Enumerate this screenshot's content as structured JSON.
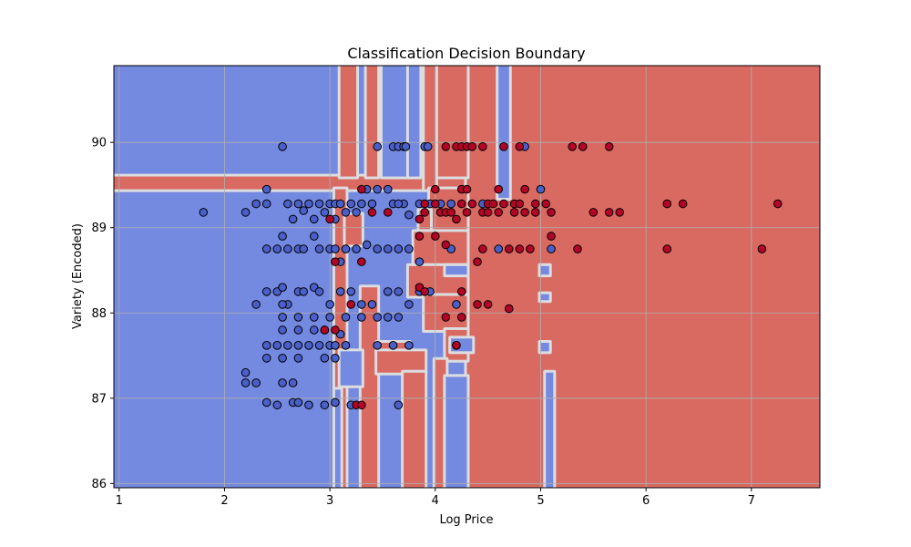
{
  "chart_data": {
    "type": "scatter",
    "title": "Classification Decision Boundary",
    "xlabel": "Log Price",
    "ylabel": "Variety (Encoded)",
    "xlim": [
      0.95,
      7.65
    ],
    "ylim": [
      85.95,
      90.9
    ],
    "xticks": [
      1,
      2,
      3,
      4,
      5,
      6,
      7
    ],
    "yticks": [
      86,
      87,
      88,
      89,
      90
    ],
    "grid": true,
    "colors": {
      "class_0_region": "#7489e0",
      "class_1_region": "#d86a62",
      "boundary_light": "#dcdde0",
      "class_0_point": "#4a5fc8",
      "class_1_point": "#b40426",
      "point_edge": "#000000",
      "grid": "#b0b0b0"
    },
    "regions_class_1": [
      [
        0.95,
        89.45,
        7.65,
        89.6
      ],
      [
        3.1,
        89.6,
        3.25,
        90.9
      ],
      [
        3.35,
        89.6,
        3.45,
        90.9
      ],
      [
        4.3,
        85.95,
        7.65,
        90.9
      ],
      [
        4.0,
        89.6,
        4.3,
        90.9
      ],
      [
        3.9,
        89.45,
        4.0,
        90.9
      ],
      [
        3.95,
        88.95,
        4.3,
        89.45
      ],
      [
        3.85,
        88.95,
        3.95,
        89.2
      ],
      [
        3.8,
        88.55,
        4.3,
        88.95
      ],
      [
        3.75,
        88.2,
        4.3,
        88.55
      ],
      [
        3.05,
        85.95,
        3.15,
        89.45
      ],
      [
        3.15,
        88.8,
        3.3,
        89.15
      ],
      [
        3.3,
        85.95,
        3.45,
        88.3
      ],
      [
        3.45,
        87.55,
        3.75,
        87.65
      ],
      [
        3.45,
        87.3,
        3.9,
        87.55
      ],
      [
        3.7,
        85.95,
        3.9,
        87.3
      ],
      [
        3.9,
        87.8,
        4.3,
        88.2
      ],
      [
        4.1,
        87.45,
        4.3,
        87.8
      ],
      [
        4.0,
        85.95,
        4.1,
        87.45
      ]
    ],
    "regions_class_0": [
      [
        4.1,
        85.95,
        4.3,
        87.25
      ],
      [
        5.05,
        85.95,
        5.12,
        87.3
      ],
      [
        4.1,
        88.45,
        4.3,
        88.55
      ],
      [
        4.15,
        87.55,
        4.35,
        87.7
      ],
      [
        5.0,
        88.45,
        5.08,
        88.55
      ],
      [
        5.0,
        88.15,
        5.08,
        88.22
      ],
      [
        5.0,
        87.55,
        5.08,
        87.65
      ],
      [
        4.6,
        89.35,
        4.7,
        90.9
      ],
      [
        3.5,
        89.6,
        3.75,
        90.9
      ],
      [
        3.75,
        89.6,
        3.85,
        90.9
      ],
      [
        3.1,
        87.15,
        3.3,
        87.55
      ],
      [
        3.05,
        85.95,
        3.1,
        87.1
      ]
    ],
    "series": [
      {
        "class": 0,
        "points": [
          [
            2.55,
            89.95
          ],
          [
            3.45,
            89.95
          ],
          [
            3.6,
            89.95
          ],
          [
            3.65,
            89.95
          ],
          [
            3.7,
            89.95
          ],
          [
            3.72,
            89.95
          ],
          [
            3.9,
            89.95
          ],
          [
            3.93,
            89.95
          ],
          [
            4.85,
            89.95
          ],
          [
            1.8,
            89.18
          ],
          [
            2.2,
            89.18
          ],
          [
            2.3,
            89.28
          ],
          [
            2.4,
            89.28
          ],
          [
            2.4,
            89.45
          ],
          [
            2.6,
            89.28
          ],
          [
            2.7,
            89.28
          ],
          [
            2.8,
            89.28
          ],
          [
            2.9,
            89.28
          ],
          [
            3.0,
            89.28
          ],
          [
            3.05,
            89.28
          ],
          [
            3.1,
            89.28
          ],
          [
            3.2,
            89.28
          ],
          [
            3.3,
            89.28
          ],
          [
            3.4,
            89.28
          ],
          [
            3.6,
            89.28
          ],
          [
            3.7,
            89.28
          ],
          [
            3.85,
            89.28
          ],
          [
            3.95,
            89.28
          ],
          [
            4.05,
            89.28
          ],
          [
            4.15,
            89.28
          ],
          [
            4.45,
            89.28
          ],
          [
            5.0,
            89.45
          ],
          [
            2.65,
            89.1
          ],
          [
            2.75,
            89.2
          ],
          [
            2.85,
            89.1
          ],
          [
            2.95,
            89.18
          ],
          [
            3.05,
            89.1
          ],
          [
            3.15,
            89.18
          ],
          [
            3.35,
            89.45
          ],
          [
            3.45,
            89.45
          ],
          [
            3.55,
            89.45
          ],
          [
            3.65,
            89.28
          ],
          [
            3.75,
            89.15
          ],
          [
            3.25,
            89.18
          ],
          [
            2.4,
            88.75
          ],
          [
            2.5,
            88.75
          ],
          [
            2.55,
            88.9
          ],
          [
            2.6,
            88.75
          ],
          [
            2.7,
            88.75
          ],
          [
            2.75,
            88.75
          ],
          [
            2.85,
            88.9
          ],
          [
            2.9,
            88.75
          ],
          [
            3.0,
            88.75
          ],
          [
            3.05,
            88.75
          ],
          [
            3.1,
            88.6
          ],
          [
            3.15,
            88.75
          ],
          [
            3.25,
            88.75
          ],
          [
            3.35,
            88.8
          ],
          [
            3.45,
            88.75
          ],
          [
            3.55,
            88.75
          ],
          [
            3.65,
            88.75
          ],
          [
            3.75,
            88.75
          ],
          [
            3.85,
            88.6
          ],
          [
            4.15,
            88.75
          ],
          [
            4.6,
            88.75
          ],
          [
            5.1,
            88.75
          ],
          [
            2.4,
            88.25
          ],
          [
            2.5,
            88.25
          ],
          [
            2.55,
            88.3
          ],
          [
            2.6,
            88.1
          ],
          [
            2.7,
            88.25
          ],
          [
            2.75,
            88.25
          ],
          [
            2.85,
            88.3
          ],
          [
            2.9,
            88.25
          ],
          [
            3.0,
            88.1
          ],
          [
            3.1,
            88.25
          ],
          [
            3.2,
            88.25
          ],
          [
            3.3,
            88.1
          ],
          [
            3.4,
            88.1
          ],
          [
            3.55,
            88.25
          ],
          [
            3.65,
            88.25
          ],
          [
            3.75,
            88.1
          ],
          [
            3.85,
            88.25
          ],
          [
            3.95,
            88.25
          ],
          [
            4.2,
            88.1
          ],
          [
            2.3,
            88.1
          ],
          [
            2.55,
            88.1
          ],
          [
            2.55,
            87.95
          ],
          [
            2.7,
            87.95
          ],
          [
            2.85,
            87.95
          ],
          [
            3.0,
            87.95
          ],
          [
            3.15,
            87.95
          ],
          [
            3.3,
            87.95
          ],
          [
            3.45,
            87.95
          ],
          [
            3.55,
            87.95
          ],
          [
            3.65,
            87.95
          ],
          [
            2.55,
            87.8
          ],
          [
            2.7,
            87.8
          ],
          [
            2.85,
            87.8
          ],
          [
            2.95,
            87.8
          ],
          [
            3.1,
            87.75
          ],
          [
            2.4,
            87.62
          ],
          [
            2.5,
            87.62
          ],
          [
            2.6,
            87.62
          ],
          [
            2.7,
            87.62
          ],
          [
            2.8,
            87.62
          ],
          [
            2.9,
            87.62
          ],
          [
            3.0,
            87.62
          ],
          [
            3.05,
            87.62
          ],
          [
            3.15,
            87.62
          ],
          [
            3.45,
            87.62
          ],
          [
            3.6,
            87.62
          ],
          [
            3.75,
            87.62
          ],
          [
            4.2,
            87.62
          ],
          [
            2.4,
            87.47
          ],
          [
            2.55,
            87.47
          ],
          [
            2.7,
            87.47
          ],
          [
            2.95,
            87.47
          ],
          [
            3.05,
            87.47
          ],
          [
            2.2,
            87.3
          ],
          [
            2.2,
            87.18
          ],
          [
            2.3,
            87.18
          ],
          [
            2.55,
            87.18
          ],
          [
            2.65,
            87.18
          ],
          [
            2.4,
            86.95
          ],
          [
            2.5,
            86.92
          ],
          [
            2.65,
            86.95
          ],
          [
            2.7,
            86.95
          ],
          [
            2.8,
            86.92
          ],
          [
            2.95,
            86.92
          ],
          [
            3.05,
            86.95
          ],
          [
            3.2,
            86.92
          ],
          [
            3.65,
            86.92
          ]
        ]
      },
      {
        "class": 1,
        "points": [
          [
            4.1,
            89.95
          ],
          [
            4.2,
            89.95
          ],
          [
            4.25,
            89.95
          ],
          [
            4.3,
            89.95
          ],
          [
            4.35,
            89.95
          ],
          [
            4.45,
            89.95
          ],
          [
            4.65,
            89.95
          ],
          [
            4.8,
            89.95
          ],
          [
            5.3,
            89.95
          ],
          [
            5.4,
            89.95
          ],
          [
            5.65,
            89.95
          ],
          [
            3.3,
            89.45
          ],
          [
            4.0,
            89.45
          ],
          [
            4.25,
            89.45
          ],
          [
            4.3,
            89.45
          ],
          [
            4.6,
            89.45
          ],
          [
            4.85,
            89.45
          ],
          [
            3.9,
            89.28
          ],
          [
            4.0,
            89.28
          ],
          [
            4.25,
            89.28
          ],
          [
            4.35,
            89.28
          ],
          [
            4.5,
            89.28
          ],
          [
            4.55,
            89.28
          ],
          [
            4.65,
            89.28
          ],
          [
            4.75,
            89.28
          ],
          [
            4.8,
            89.28
          ],
          [
            4.95,
            89.28
          ],
          [
            5.05,
            89.28
          ],
          [
            6.2,
            89.28
          ],
          [
            6.35,
            89.28
          ],
          [
            7.25,
            89.28
          ],
          [
            3.9,
            89.18
          ],
          [
            4.05,
            89.18
          ],
          [
            4.1,
            89.18
          ],
          [
            4.15,
            89.18
          ],
          [
            4.3,
            89.18
          ],
          [
            4.45,
            89.18
          ],
          [
            4.5,
            89.18
          ],
          [
            4.6,
            89.18
          ],
          [
            4.75,
            89.18
          ],
          [
            4.85,
            89.18
          ],
          [
            4.95,
            89.18
          ],
          [
            5.1,
            89.18
          ],
          [
            5.5,
            89.18
          ],
          [
            5.65,
            89.18
          ],
          [
            5.75,
            89.18
          ],
          [
            3.0,
            89.1
          ],
          [
            3.4,
            89.18
          ],
          [
            3.55,
            89.18
          ],
          [
            3.85,
            89.1
          ],
          [
            4.2,
            89.1
          ],
          [
            3.85,
            88.9
          ],
          [
            4.0,
            88.9
          ],
          [
            4.45,
            88.75
          ],
          [
            4.7,
            88.75
          ],
          [
            4.8,
            88.75
          ],
          [
            4.9,
            88.75
          ],
          [
            5.35,
            88.75
          ],
          [
            6.2,
            88.75
          ],
          [
            7.1,
            88.75
          ],
          [
            4.1,
            88.8
          ],
          [
            4.4,
            88.6
          ],
          [
            5.1,
            88.9
          ],
          [
            3.05,
            88.6
          ],
          [
            3.3,
            88.6
          ],
          [
            3.85,
            88.3
          ],
          [
            3.9,
            88.25
          ],
          [
            4.25,
            88.25
          ],
          [
            4.4,
            88.1
          ],
          [
            4.5,
            88.1
          ],
          [
            4.7,
            88.05
          ],
          [
            3.2,
            88.1
          ],
          [
            2.95,
            87.8
          ],
          [
            3.05,
            87.8
          ],
          [
            4.1,
            87.95
          ],
          [
            4.25,
            87.95
          ],
          [
            4.2,
            87.62
          ],
          [
            3.25,
            86.92
          ],
          [
            3.3,
            86.92
          ]
        ]
      }
    ]
  }
}
